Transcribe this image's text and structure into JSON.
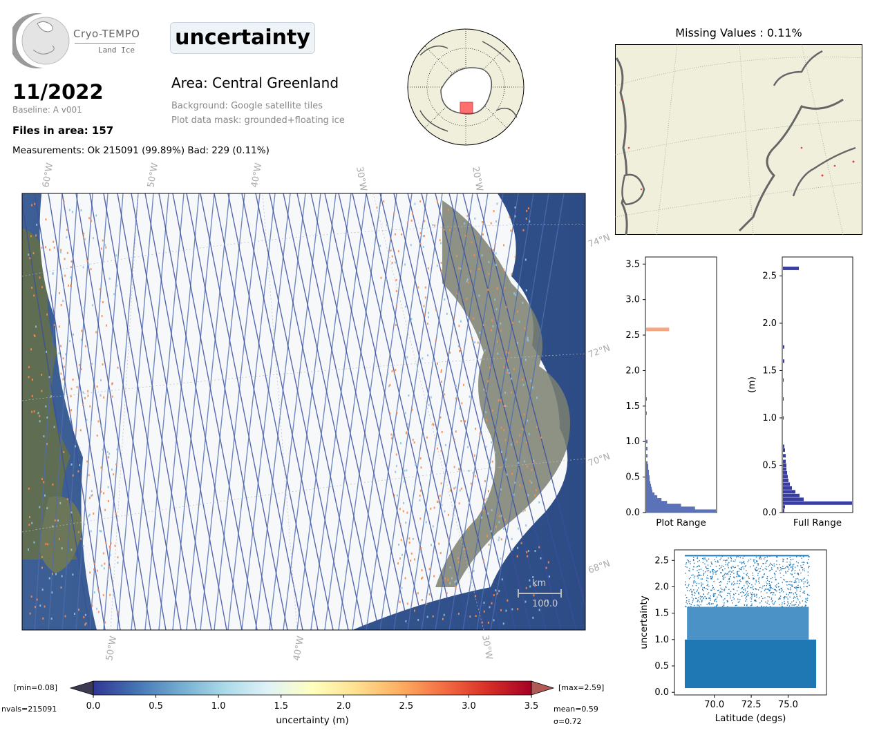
{
  "header": {
    "logo_name": "Cryo-TEMPO",
    "logo_sub": "Land Ice",
    "date": "11/2022",
    "baseline": "Baseline: A v001",
    "files_in_area": "Files in area: 157",
    "measurements": "Measurements: Ok 215091 (99.89%) Bad: 229 (0.11%)",
    "parameter": "uncertainty",
    "area": "Area: Central Greenland",
    "background": "Background: Google satellite tiles",
    "mask": "Plot data mask: grounded+floating ice"
  },
  "main_map": {
    "lon_labels_top": [
      "60°W",
      "50°W",
      "40°W",
      "30°W",
      "20°W"
    ],
    "lon_labels_bottom": [
      "50°W",
      "40°W",
      "30°W"
    ],
    "lat_labels": [
      "74°N",
      "72°N",
      "70°N",
      "68°N"
    ],
    "scale_unit": "km",
    "scale_value": "100.0"
  },
  "missing_map": {
    "title": "Missing Values : 0.11%"
  },
  "colorbar": {
    "min_label": "[min=0.08]",
    "max_label": "[max=2.59]",
    "nvals": "nvals=215091",
    "mean": "mean=0.59",
    "sigma": "σ=0.72",
    "label": "uncertainty (m)",
    "ticks": [
      "0.0",
      "0.5",
      "1.0",
      "1.5",
      "2.0",
      "2.5",
      "3.0",
      "3.5"
    ]
  },
  "colors": {
    "low": "#313695",
    "mid": "#ffffbf",
    "high": "#a50026"
  },
  "chart_data": [
    {
      "type": "bar",
      "orientation": "horizontal",
      "xlabel": "Plot Range",
      "ylim": [
        0,
        3.6
      ],
      "y_ticks": [
        "0.0",
        "0.5",
        "1.0",
        "1.5",
        "2.0",
        "2.5",
        "3.0",
        "3.5"
      ],
      "bins": [
        0.02,
        0.06,
        0.1,
        0.14,
        0.18,
        0.22,
        0.26,
        0.3,
        0.34,
        0.38,
        0.42,
        0.46,
        0.5,
        0.54,
        0.58,
        0.62,
        0.66,
        0.7,
        0.8,
        0.9,
        1.0,
        1.4,
        1.6,
        2.58
      ],
      "values": [
        100,
        70,
        50,
        30,
        22,
        16,
        12,
        9,
        8,
        7,
        6,
        5,
        5,
        4,
        4,
        3,
        3,
        2,
        2,
        2,
        2,
        1,
        1,
        33
      ]
    },
    {
      "type": "bar",
      "orientation": "horizontal",
      "xlabel": "Full Range",
      "ylabel": "(m)",
      "ylim": [
        0,
        2.7
      ],
      "y_ticks": [
        "0.0",
        "0.5",
        "1.0",
        "1.5",
        "2.0",
        "2.5"
      ],
      "bins": [
        0.02,
        0.06,
        0.1,
        0.14,
        0.18,
        0.22,
        0.26,
        0.3,
        0.34,
        0.38,
        0.42,
        0.46,
        0.5,
        0.54,
        0.6,
        0.66,
        0.7,
        1.0,
        1.2,
        1.4,
        1.6,
        1.75,
        2.58
      ],
      "values": [
        2,
        3,
        100,
        30,
        24,
        18,
        13,
        10,
        8,
        7,
        6,
        5,
        5,
        4,
        4,
        3,
        2,
        1,
        1,
        1,
        2,
        2,
        23
      ]
    },
    {
      "type": "scatter",
      "xlabel": "Latitude (degs)",
      "ylabel": "uncertainty",
      "xlim": [
        67.3,
        77.6
      ],
      "ylim": [
        -0.05,
        2.7
      ],
      "x_ticks": [
        "70.0",
        "72.5",
        "75.0"
      ],
      "y_ticks": [
        "0.0",
        "0.5",
        "1.0",
        "1.5",
        "2.0",
        "2.5"
      ],
      "x_range": [
        68.0,
        76.9
      ],
      "y_range": [
        0.08,
        2.59
      ],
      "count": 215091
    }
  ]
}
